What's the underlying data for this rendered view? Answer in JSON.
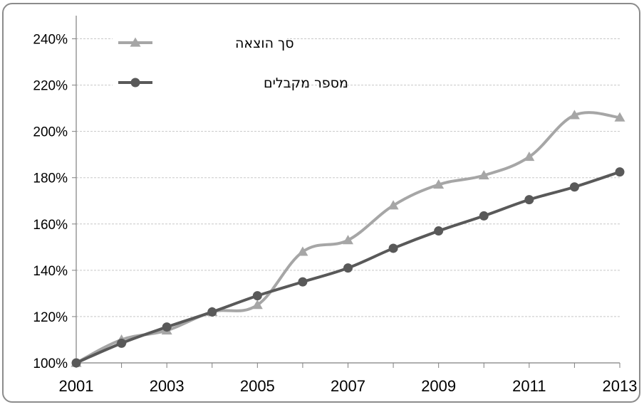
{
  "chart_data": {
    "type": "line",
    "title": "",
    "xlabel": "",
    "ylabel": "",
    "x": [
      2001,
      2002,
      2003,
      2004,
      2005,
      2006,
      2007,
      2008,
      2009,
      2010,
      2011,
      2012,
      2013
    ],
    "x_tick_labels": [
      "2001",
      "2003",
      "2005",
      "2007",
      "2009",
      "2011",
      "2013"
    ],
    "y_tick_labels": [
      "100%",
      "120%",
      "140%",
      "160%",
      "180%",
      "200%",
      "220%",
      "240%"
    ],
    "ylim": [
      100,
      250
    ],
    "grid": true,
    "legend_position": "top-left",
    "series": [
      {
        "name": "סך הוצאה",
        "color": "#a6a6a6",
        "marker": "triangle",
        "values": [
          100,
          110,
          114,
          122,
          125,
          148,
          153,
          168,
          177,
          181,
          189,
          207,
          206
        ]
      },
      {
        "name": "מספר מקבלים",
        "color": "#595959",
        "marker": "circle",
        "values": [
          100,
          108.5,
          115.5,
          122,
          129,
          135,
          141,
          149.5,
          157,
          163.5,
          170.5,
          176,
          182.5
        ]
      }
    ]
  }
}
